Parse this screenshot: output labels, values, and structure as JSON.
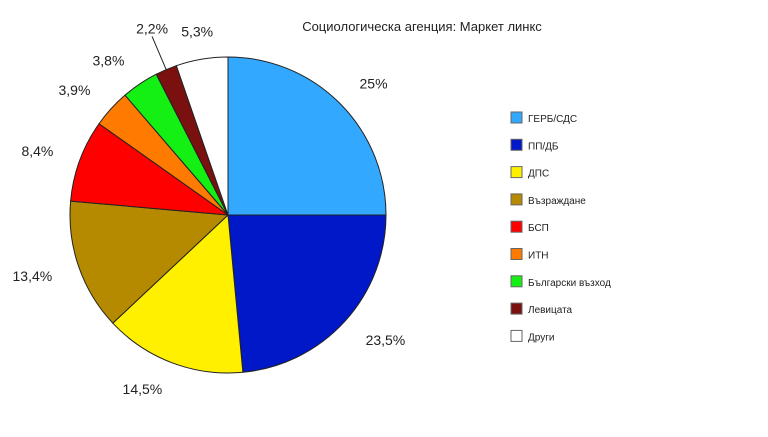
{
  "chart_data": {
    "type": "pie",
    "title": "Социологическа агенция: Маркет линкс",
    "legend_position": "right",
    "slices": [
      {
        "name": "ГЕРБ/СДС",
        "value": 25,
        "label": "25%",
        "color": "#33a8ff"
      },
      {
        "name": "ПП/ДБ",
        "value": 23.5,
        "label": "23,5%",
        "color": "#0018c8"
      },
      {
        "name": "ДПС",
        "value": 14.5,
        "label": "14,5%",
        "color": "#fff000"
      },
      {
        "name": "Възраждане",
        "value": 13.4,
        "label": "13,4%",
        "color": "#b58900"
      },
      {
        "name": "БСП",
        "value": 8.4,
        "label": "8,4%",
        "color": "#ff0000"
      },
      {
        "name": "ИТН",
        "value": 3.9,
        "label": "3,9%",
        "color": "#ff7a00"
      },
      {
        "name": "Български възход",
        "value": 3.8,
        "label": "3,8%",
        "color": "#14f014"
      },
      {
        "name": "Левицата",
        "value": 2.2,
        "label": "2,2%",
        "color": "#7a1010"
      },
      {
        "name": "Други",
        "value": 5.3,
        "label": "5,3%",
        "color": "#ffffff"
      }
    ]
  }
}
